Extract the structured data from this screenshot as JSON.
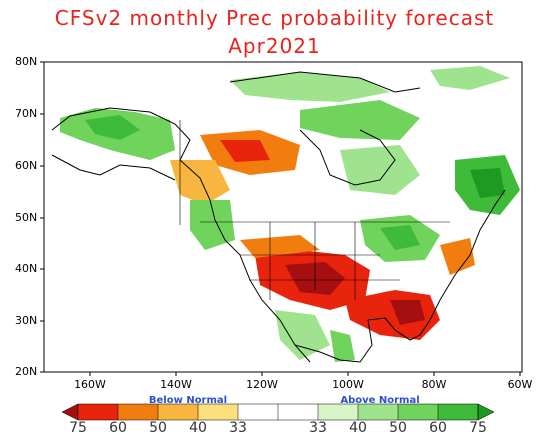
{
  "title": {
    "line1": "CFSv2 monthly Prec probability forecast",
    "line2": "Apr2021"
  },
  "map": {
    "lat_labels": [
      "80N",
      "70N",
      "60N",
      "50N",
      "40N",
      "30N",
      "20N"
    ],
    "lon_labels": [
      "160W",
      "140W",
      "120W",
      "100W",
      "80W",
      "60W"
    ],
    "colors": {
      "below_75": "#a50f0f",
      "below_60": "#e8240c",
      "below_50": "#f27d0f",
      "below_40": "#f8b640",
      "below_33": "#fde07e",
      "normal": "#ffffff",
      "above_33": "#d8f5c5",
      "above_40": "#9fe38e",
      "above_50": "#6fd35c",
      "above_60": "#3fbb3a",
      "above_75": "#1e9a22"
    }
  },
  "colorbar": {
    "below_label": "Below Normal",
    "above_label": "Above Normal",
    "below_ticks": [
      "75",
      "60",
      "50",
      "40",
      "33"
    ],
    "above_ticks": [
      "33",
      "40",
      "50",
      "60",
      "75"
    ]
  }
}
